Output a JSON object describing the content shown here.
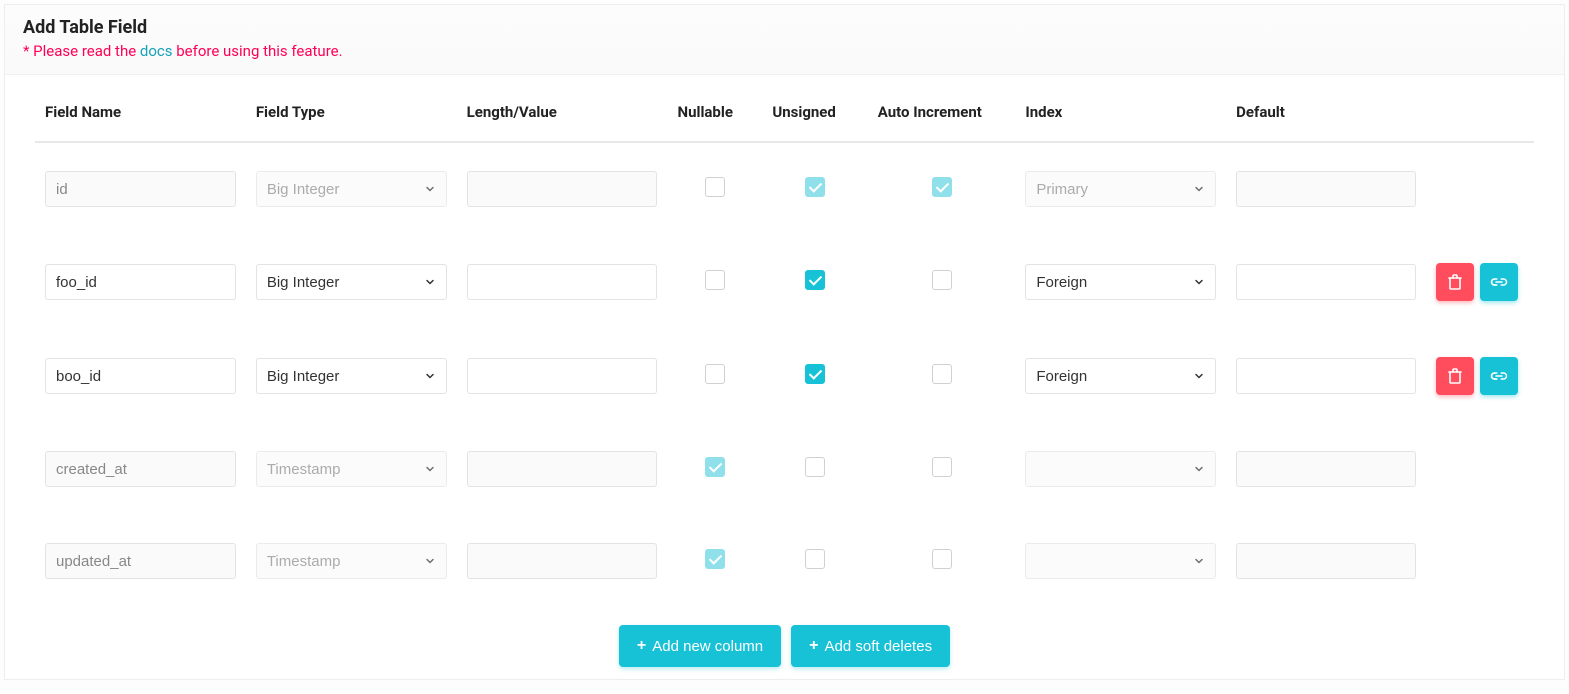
{
  "header": {
    "title": "Add Table Field",
    "notice_prefix": "* Please read the ",
    "notice_link": "docs",
    "notice_suffix": " before using this feature."
  },
  "columns": {
    "name": "Field Name",
    "type": "Field Type",
    "length": "Length/Value",
    "nullable": "Nullable",
    "unsigned": "Unsigned",
    "autoinc": "Auto Increment",
    "index": "Index",
    "default": "Default"
  },
  "type_options": [
    "Big Integer",
    "Timestamp"
  ],
  "index_options": [
    "",
    "Primary",
    "Foreign"
  ],
  "rows": [
    {
      "name": "id",
      "type": "Big Integer",
      "length": "",
      "nullable": false,
      "unsigned": true,
      "autoinc": true,
      "index": "Primary",
      "default": "",
      "locked": true,
      "has_actions": false
    },
    {
      "name": "foo_id",
      "type": "Big Integer",
      "length": "",
      "nullable": false,
      "unsigned": true,
      "autoinc": false,
      "index": "Foreign",
      "default": "",
      "locked": false,
      "has_actions": true
    },
    {
      "name": "boo_id",
      "type": "Big Integer",
      "length": "",
      "nullable": false,
      "unsigned": true,
      "autoinc": false,
      "index": "Foreign",
      "default": "",
      "locked": false,
      "has_actions": true
    },
    {
      "name": "created_at",
      "type": "Timestamp",
      "length": "",
      "nullable": true,
      "unsigned": false,
      "autoinc": false,
      "index": "",
      "default": "",
      "locked": true,
      "has_actions": false
    },
    {
      "name": "updated_at",
      "type": "Timestamp",
      "length": "",
      "nullable": true,
      "unsigned": false,
      "autoinc": false,
      "index": "",
      "default": "",
      "locked": true,
      "has_actions": false
    }
  ],
  "footer": {
    "add_column": "Add new column",
    "add_soft_deletes": "Add soft deletes"
  },
  "colors": {
    "accent": "#17c2d7",
    "danger": "#ff4d5e",
    "notice": "#ff0055"
  }
}
